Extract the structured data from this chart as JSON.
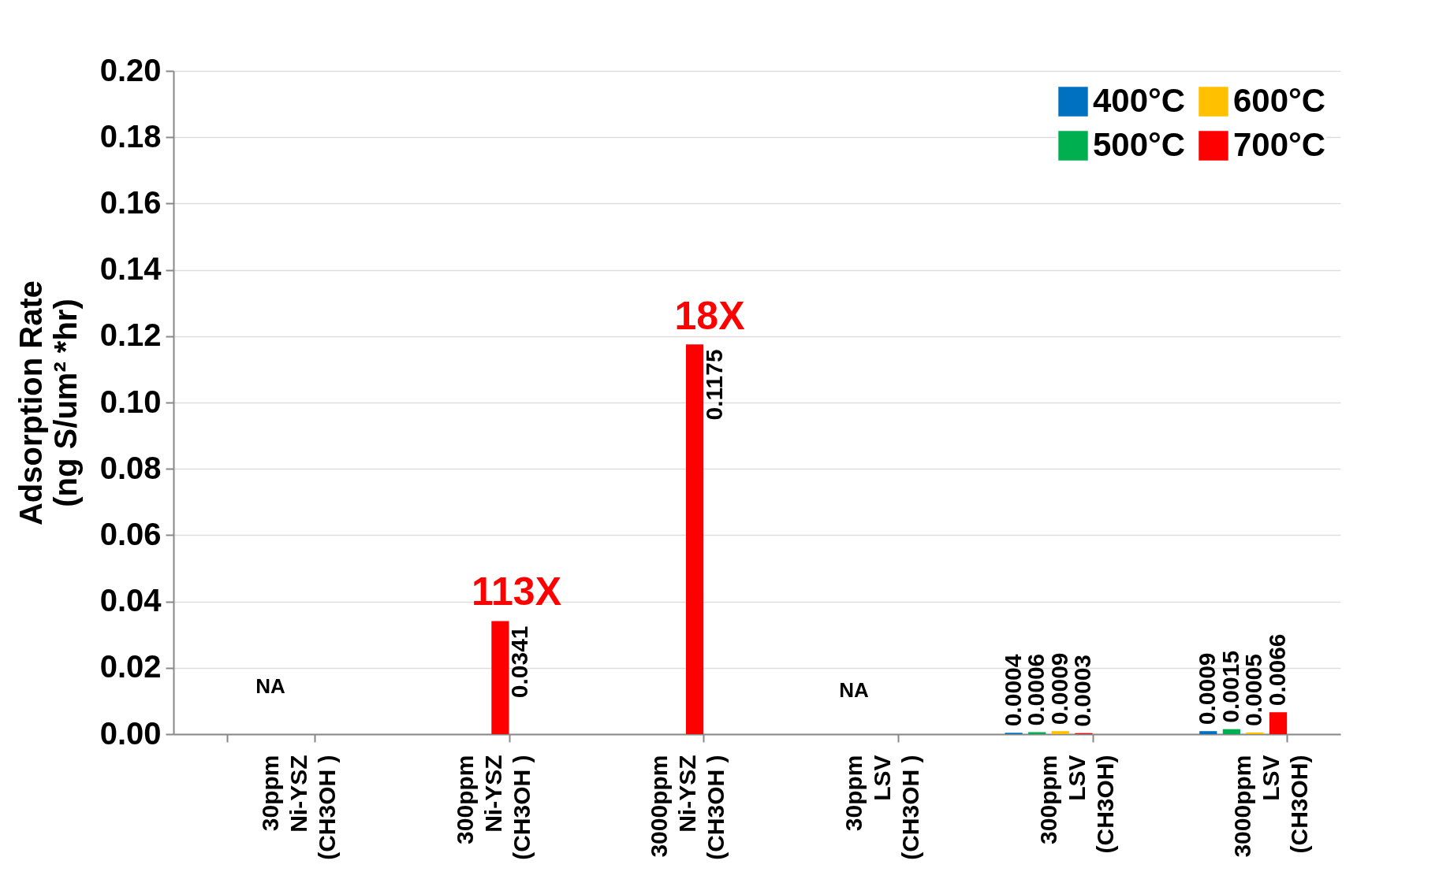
{
  "chart_data": {
    "type": "bar",
    "ylabel": "Adsorption Rate\n(ng S/um² *hr)",
    "categories": [
      "30ppm\nNi-YSZ\n(CH3OH )",
      "300ppm\nNi-YSZ\n(CH3OH )",
      "3000ppm\nNi-YSZ\n(CH3OH )",
      "30ppm\nLSV\n(CH3OH )",
      "300ppm\nLSV\n(CH3OH)",
      "3000ppm\nLSV\n(CH3OH)"
    ],
    "series": [
      {
        "name": "400°C",
        "color": "#0070c0",
        "values": [
          null,
          null,
          null,
          null,
          0.0004,
          0.0009
        ]
      },
      {
        "name": "500°C",
        "color": "#00b050",
        "values": [
          null,
          null,
          null,
          null,
          0.0006,
          0.0015
        ]
      },
      {
        "name": "600°C",
        "color": "#ffc000",
        "values": [
          null,
          null,
          null,
          null,
          0.0009,
          0.0005
        ]
      },
      {
        "name": "700°C",
        "color": "#ff0000",
        "values": [
          null,
          0.0341,
          0.1175,
          null,
          0.0003,
          0.0066
        ]
      }
    ],
    "ylim": [
      0,
      0.2
    ],
    "yticks": [
      {
        "value": 0,
        "label": "0.00"
      },
      {
        "value": 0.02,
        "label": "0.02"
      },
      {
        "value": 0.04,
        "label": "0.04"
      },
      {
        "value": 0.06,
        "label": "0.06"
      },
      {
        "value": 0.08,
        "label": "0.08"
      },
      {
        "value": 0.1,
        "label": "0.10"
      },
      {
        "value": 0.12,
        "label": "0.12"
      },
      {
        "value": 0.14,
        "label": "0.14"
      },
      {
        "value": 0.16,
        "label": "0.16"
      },
      {
        "value": 0.18,
        "label": "0.18"
      },
      {
        "value": 0.2,
        "label": "0.20"
      }
    ],
    "annotations": [
      "NA",
      "113X",
      "18X",
      "NA"
    ],
    "data_labels": true,
    "grid": "y",
    "legend": "top right"
  }
}
